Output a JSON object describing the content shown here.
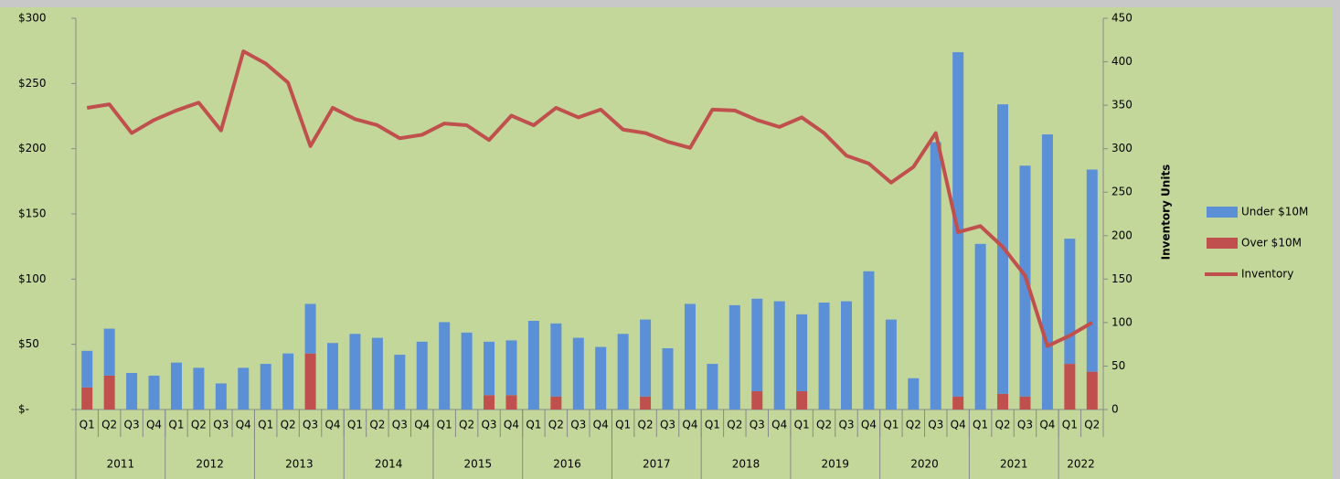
{
  "chart_data": {
    "type": "bar",
    "y2_label": "Inventory Units",
    "categories": [
      "Q1",
      "Q2",
      "Q3",
      "Q4",
      "Q1",
      "Q2",
      "Q3",
      "Q4",
      "Q1",
      "Q2",
      "Q3",
      "Q4",
      "Q1",
      "Q2",
      "Q3",
      "Q4",
      "Q1",
      "Q2",
      "Q3",
      "Q4",
      "Q1",
      "Q2",
      "Q3",
      "Q4",
      "Q1",
      "Q2",
      "Q3",
      "Q4",
      "Q1",
      "Q2",
      "Q3",
      "Q4",
      "Q1",
      "Q2",
      "Q3",
      "Q4",
      "Q1",
      "Q2",
      "Q3",
      "Q4",
      "Q1",
      "Q2",
      "Q3",
      "Q4",
      "Q1",
      "Q2"
    ],
    "groups": [
      "2011",
      "2012",
      "2013",
      "2014",
      "2015",
      "2016",
      "2017",
      "2018",
      "2019",
      "2020",
      "2021",
      "2022"
    ],
    "series": [
      {
        "name": "Under $10M",
        "color": "#5b8fd6",
        "type": "bar",
        "values": [
          28,
          36,
          28,
          26,
          36,
          32,
          20,
          32,
          35,
          43,
          38,
          51,
          58,
          55,
          42,
          52,
          67,
          59,
          41,
          42,
          68,
          56,
          55,
          48,
          58,
          59,
          47,
          81,
          35,
          80,
          71,
          83,
          59,
          82,
          83,
          106,
          69,
          24,
          205,
          264,
          127,
          222,
          177,
          211,
          96,
          155
        ]
      },
      {
        "name": "Over $10M",
        "color": "#c0504d",
        "type": "bar",
        "values": [
          17,
          26,
          0,
          0,
          0,
          0,
          0,
          0,
          0,
          0,
          43,
          0,
          0,
          0,
          0,
          0,
          0,
          0,
          11,
          11,
          0,
          10,
          0,
          0,
          0,
          10,
          0,
          0,
          0,
          0,
          14,
          0,
          14,
          0,
          0,
          0,
          0,
          0,
          0,
          10,
          0,
          12,
          10,
          0,
          35,
          29
        ]
      },
      {
        "name": "Inventory",
        "color": "#c0504d",
        "type": "line",
        "axis": "y2",
        "values": [
          347,
          351,
          318,
          333,
          344,
          353,
          321,
          412,
          398,
          376,
          303,
          347,
          334,
          327,
          312,
          316,
          329,
          327,
          310,
          338,
          327,
          347,
          336,
          345,
          322,
          318,
          308,
          301,
          345,
          344,
          333,
          325,
          336,
          318,
          292,
          283,
          261,
          279,
          318,
          204,
          211,
          187,
          154,
          73,
          85,
          100
        ]
      }
    ],
    "ylim": [
      0,
      300
    ],
    "yticks": [
      {
        "value": 0,
        "label": "$-"
      },
      {
        "value": 50,
        "label": "$50"
      },
      {
        "value": 100,
        "label": "$100"
      },
      {
        "value": 150,
        "label": "$150"
      },
      {
        "value": 200,
        "label": "$200"
      },
      {
        "value": 250,
        "label": "$250"
      },
      {
        "value": 300,
        "label": "$300"
      }
    ],
    "y2lim": [
      0,
      450
    ],
    "y2ticks": [
      0,
      50,
      100,
      150,
      200,
      250,
      300,
      350,
      400,
      450
    ],
    "legend": "right"
  }
}
